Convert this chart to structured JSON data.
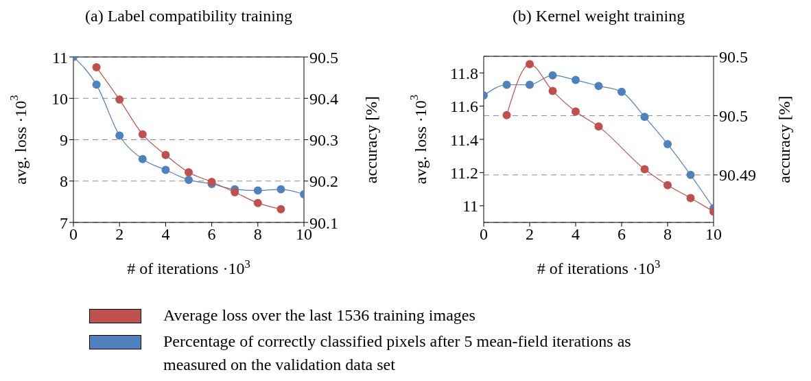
{
  "chart_data": [
    {
      "type": "line",
      "title": "(a) Label compatibility training",
      "xlabel": "# of iterations ·10$^{3}$",
      "ylabel": "avg. loss ·10$^{3}$",
      "y2label": "accuracy [%]",
      "xlim": [
        0,
        10
      ],
      "xticks": [
        0,
        2,
        4,
        6,
        8,
        10
      ],
      "ylim": [
        7,
        11
      ],
      "yticks": [
        7,
        8,
        9,
        10,
        11
      ],
      "y2lim": [
        90.1,
        90.5
      ],
      "y2ticks": [
        90.1,
        90.2,
        90.3,
        90.4,
        90.5
      ],
      "grid": "y2",
      "legend": "bottom",
      "marker": "circle",
      "line_style": "solid",
      "series": [
        {
          "name": "Average loss over the last 1536 training images",
          "color": "#c0504d",
          "x": [
            1,
            2,
            3,
            4,
            5,
            6,
            7,
            8,
            9
          ],
          "values": [
            10.75,
            9.97,
            9.13,
            8.63,
            8.21,
            7.98,
            7.73,
            7.47,
            7.32
          ]
        },
        {
          "name": "Percentage of correctly classified pixels after 5 mean-field iterations as measured on the validation data set",
          "color": "#4f81bd",
          "axis": "y2",
          "x": [
            0,
            1,
            2,
            3,
            4,
            5,
            6,
            7,
            8,
            9,
            10
          ],
          "values": [
            90.5,
            90.433,
            90.31,
            90.253,
            90.227,
            90.203,
            90.193,
            90.18,
            90.177,
            90.18,
            90.168
          ]
        }
      ]
    },
    {
      "type": "line",
      "title": "(b) Kernel weight training",
      "xlabel": "# of iterations ·10$^{3}$",
      "ylabel": "avg. loss ·10$^{3}$",
      "y2label": "accuracy [%]",
      "xlim": [
        0,
        10
      ],
      "xticks": [
        0,
        2,
        4,
        6,
        8,
        10
      ],
      "ylim": [
        10.9,
        11.9
      ],
      "yticks": [
        11,
        11.2,
        11.4,
        11.6,
        11.8
      ],
      "y2lim": [
        90.482,
        90.51
      ],
      "y2ticks": [
        90.49,
        90.5,
        {
          "value": 90.51,
          "label": "90.5"
        }
      ],
      "grid": "y2",
      "marker": "circle",
      "line_style": "solid",
      "series": [
        {
          "color": "#c0504d",
          "x": [
            1,
            2,
            3,
            4,
            5,
            7,
            8,
            9,
            10
          ],
          "values": [
            11.546,
            11.852,
            11.691,
            11.567,
            11.477,
            11.22,
            11.124,
            11.047,
            10.965
          ]
        },
        {
          "color": "#4f81bd",
          "axis": "y2",
          "x": [
            0,
            1,
            2,
            3,
            4,
            5,
            6,
            7,
            8,
            9,
            10
          ],
          "values": [
            90.5034,
            90.5052,
            90.5052,
            90.5068,
            90.506,
            90.505,
            90.504,
            90.4998,
            90.4952,
            90.49,
            90.4844
          ]
        }
      ]
    }
  ]
}
